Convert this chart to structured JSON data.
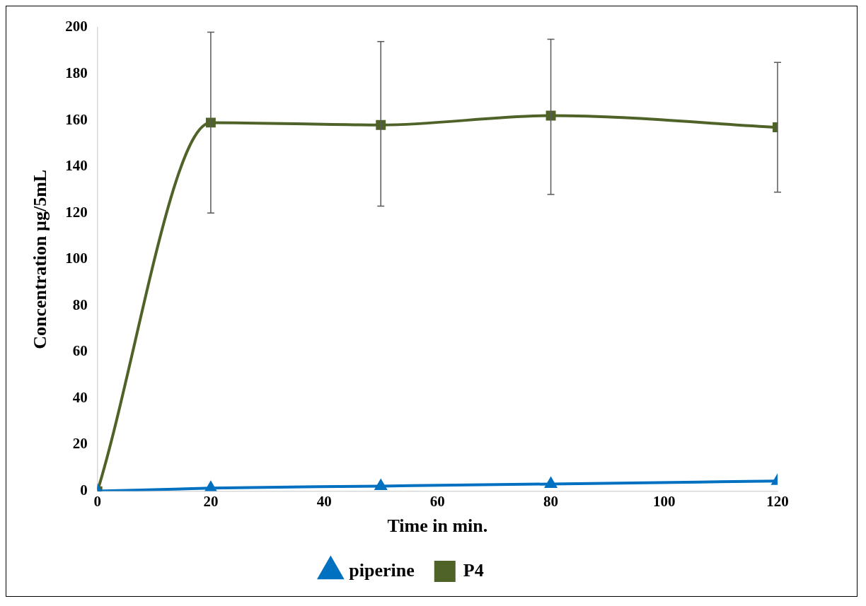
{
  "chart_data": {
    "type": "line",
    "xlabel": "Time in min.",
    "ylabel": "Concentration µg/5mL",
    "x": [
      0,
      20,
      50,
      80,
      120
    ],
    "series": [
      {
        "name": "piperine",
        "color": "#0070c0",
        "marker": "triangle",
        "values": [
          0,
          1.3,
          2.2,
          3.1,
          4.4
        ]
      },
      {
        "name": "P4",
        "color": "#4f6228",
        "marker": "square",
        "values": [
          0,
          159,
          158,
          162,
          157
        ],
        "errors": [
          null,
          [
            120,
            198
          ],
          [
            123,
            194
          ],
          [
            128,
            195
          ],
          [
            129,
            185
          ]
        ]
      }
    ],
    "xlim": [
      0,
      120
    ],
    "xticks": [
      0,
      20,
      40,
      60,
      80,
      100,
      120
    ],
    "ylim": [
      0,
      200
    ],
    "yticks": [
      0,
      20,
      40,
      60,
      80,
      100,
      120,
      140,
      160,
      180,
      200
    ],
    "grid": false,
    "legend": "bottom"
  }
}
